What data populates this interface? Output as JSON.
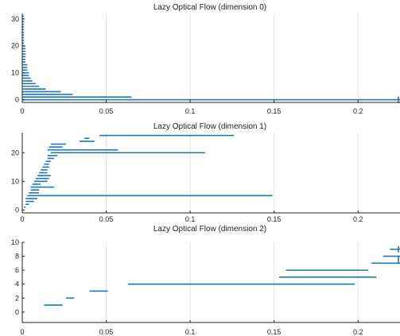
{
  "chart_data": [
    {
      "type": "bar",
      "orientation": "horizontal",
      "title": "Lazy Optical Flow (dimension 0)",
      "xlim": [
        0,
        0.225
      ],
      "ylim": [
        -1,
        32
      ],
      "xticks": [
        0,
        0.05,
        0.1,
        0.15,
        0.2
      ],
      "xtick_labels": [
        "0",
        "0.05",
        "0.1",
        "0.15",
        "0.2"
      ],
      "yticks": [
        0,
        10,
        20,
        30
      ],
      "ytick_labels": [
        "0",
        "10",
        "20",
        "30"
      ],
      "grid": "vertical",
      "color": "#1f77b4",
      "intervals": [
        {
          "y": 0,
          "start": 0,
          "end": 0.225
        },
        {
          "y": 1,
          "start": 0,
          "end": 0.065
        },
        {
          "y": 2,
          "start": 0,
          "end": 0.03
        },
        {
          "y": 3,
          "start": 0,
          "end": 0.023
        },
        {
          "y": 4,
          "start": 0,
          "end": 0.014
        },
        {
          "y": 5,
          "start": 0,
          "end": 0.01
        },
        {
          "y": 6,
          "start": 0,
          "end": 0.008
        },
        {
          "y": 7,
          "start": 0,
          "end": 0.006
        },
        {
          "y": 8,
          "start": 0,
          "end": 0.005
        },
        {
          "y": 9,
          "start": 0,
          "end": 0.004
        },
        {
          "y": 10,
          "start": 0,
          "end": 0.004
        },
        {
          "y": 11,
          "start": 0,
          "end": 0.003
        },
        {
          "y": 12,
          "start": 0,
          "end": 0.003
        },
        {
          "y": 13,
          "start": 0,
          "end": 0.003
        },
        {
          "y": 14,
          "start": 0,
          "end": 0.002
        },
        {
          "y": 15,
          "start": 0,
          "end": 0.002
        },
        {
          "y": 16,
          "start": 0,
          "end": 0.002
        },
        {
          "y": 17,
          "start": 0,
          "end": 0.002
        },
        {
          "y": 18,
          "start": 0,
          "end": 0.002
        },
        {
          "y": 19,
          "start": 0,
          "end": 0.002
        },
        {
          "y": 20,
          "start": 0,
          "end": 0.002
        },
        {
          "y": 21,
          "start": 0,
          "end": 0.001
        },
        {
          "y": 22,
          "start": 0,
          "end": 0.001
        },
        {
          "y": 23,
          "start": 0,
          "end": 0.001
        },
        {
          "y": 24,
          "start": 0,
          "end": 0.001
        },
        {
          "y": 25,
          "start": 0,
          "end": 0.001
        },
        {
          "y": 26,
          "start": 0,
          "end": 0.001
        },
        {
          "y": 27,
          "start": 0,
          "end": 0.001
        },
        {
          "y": 28,
          "start": 0,
          "end": 0.001
        },
        {
          "y": 29,
          "start": 0,
          "end": 0.001
        },
        {
          "y": 30,
          "start": 0,
          "end": 0.001
        },
        {
          "y": 31,
          "start": 0,
          "end": 0.001
        }
      ],
      "markers": [
        {
          "y": 0,
          "x": 0.2245
        }
      ]
    },
    {
      "type": "bar",
      "orientation": "horizontal",
      "title": "Lazy Optical Flow (dimension 1)",
      "xlim": [
        0,
        0.225
      ],
      "ylim": [
        -1,
        27
      ],
      "xticks": [
        0,
        0.05,
        0.1,
        0.15,
        0.2
      ],
      "xtick_labels": [
        "0",
        "0.05",
        "0.1",
        "0.15",
        "0.2"
      ],
      "yticks": [
        0,
        10,
        20
      ],
      "ytick_labels": [
        "0",
        "10",
        "20"
      ],
      "grid": "vertical",
      "color": "#1f77b4",
      "intervals": [
        {
          "y": 0,
          "start": 0,
          "end": 0.001
        },
        {
          "y": 1,
          "start": 0.001,
          "end": 0.002
        },
        {
          "y": 2,
          "start": 0.002,
          "end": 0.004
        },
        {
          "y": 3,
          "start": 0.002,
          "end": 0.007
        },
        {
          "y": 4,
          "start": 0.002,
          "end": 0.009
        },
        {
          "y": 5,
          "start": 0.003,
          "end": 0.149
        },
        {
          "y": 6,
          "start": 0.004,
          "end": 0.01
        },
        {
          "y": 7,
          "start": 0.005,
          "end": 0.01
        },
        {
          "y": 8,
          "start": 0.005,
          "end": 0.019
        },
        {
          "y": 9,
          "start": 0.006,
          "end": 0.011
        },
        {
          "y": 10,
          "start": 0.007,
          "end": 0.015
        },
        {
          "y": 11,
          "start": 0.008,
          "end": 0.016
        },
        {
          "y": 12,
          "start": 0.009,
          "end": 0.017
        },
        {
          "y": 13,
          "start": 0.01,
          "end": 0.015
        },
        {
          "y": 14,
          "start": 0.011,
          "end": 0.015
        },
        {
          "y": 15,
          "start": 0.012,
          "end": 0.016
        },
        {
          "y": 16,
          "start": 0.013,
          "end": 0.016
        },
        {
          "y": 17,
          "start": 0.014,
          "end": 0.017
        },
        {
          "y": 18,
          "start": 0.015,
          "end": 0.019
        },
        {
          "y": 19,
          "start": 0.015,
          "end": 0.021
        },
        {
          "y": 20,
          "start": 0.017,
          "end": 0.109
        },
        {
          "y": 21,
          "start": 0.015,
          "end": 0.057
        },
        {
          "y": 22,
          "start": 0.016,
          "end": 0.024
        },
        {
          "y": 23,
          "start": 0.017,
          "end": 0.026
        },
        {
          "y": 24,
          "start": 0.034,
          "end": 0.043
        },
        {
          "y": 25,
          "start": 0.037,
          "end": 0.04
        },
        {
          "y": 26,
          "start": 0.046,
          "end": 0.126
        }
      ],
      "markers": []
    },
    {
      "type": "bar",
      "orientation": "horizontal",
      "title": "Lazy Optical Flow (dimension 2)",
      "xlim": [
        0,
        0.225
      ],
      "ylim": [
        -1.5,
        10
      ],
      "xticks": [
        0,
        0.05,
        0.1,
        0.15,
        0.2
      ],
      "xtick_labels": [
        "0",
        "0.05",
        "0.1",
        "0.15",
        "0.2"
      ],
      "yticks": [
        0,
        2,
        4,
        6,
        8,
        10
      ],
      "ytick_labels": [
        "0",
        "2",
        "4",
        "6",
        "8",
        "10"
      ],
      "grid": "vertical",
      "color": "#1f77b4",
      "intervals": [
        {
          "y": 1,
          "start": 0.013,
          "end": 0.024
        },
        {
          "y": 2,
          "start": 0.026,
          "end": 0.031
        },
        {
          "y": 3,
          "start": 0.04,
          "end": 0.051
        },
        {
          "y": 4,
          "start": 0.063,
          "end": 0.198
        },
        {
          "y": 5,
          "start": 0.153,
          "end": 0.211
        },
        {
          "y": 6,
          "start": 0.157,
          "end": 0.206
        },
        {
          "y": 7,
          "start": 0.208,
          "end": 0.225
        },
        {
          "y": 8,
          "start": 0.215,
          "end": 0.225
        },
        {
          "y": 9,
          "start": 0.219,
          "end": 0.225
        }
      ],
      "markers": [
        {
          "y": 7.5,
          "x": 0.2245
        },
        {
          "y": 9,
          "x": 0.2245
        }
      ]
    }
  ]
}
